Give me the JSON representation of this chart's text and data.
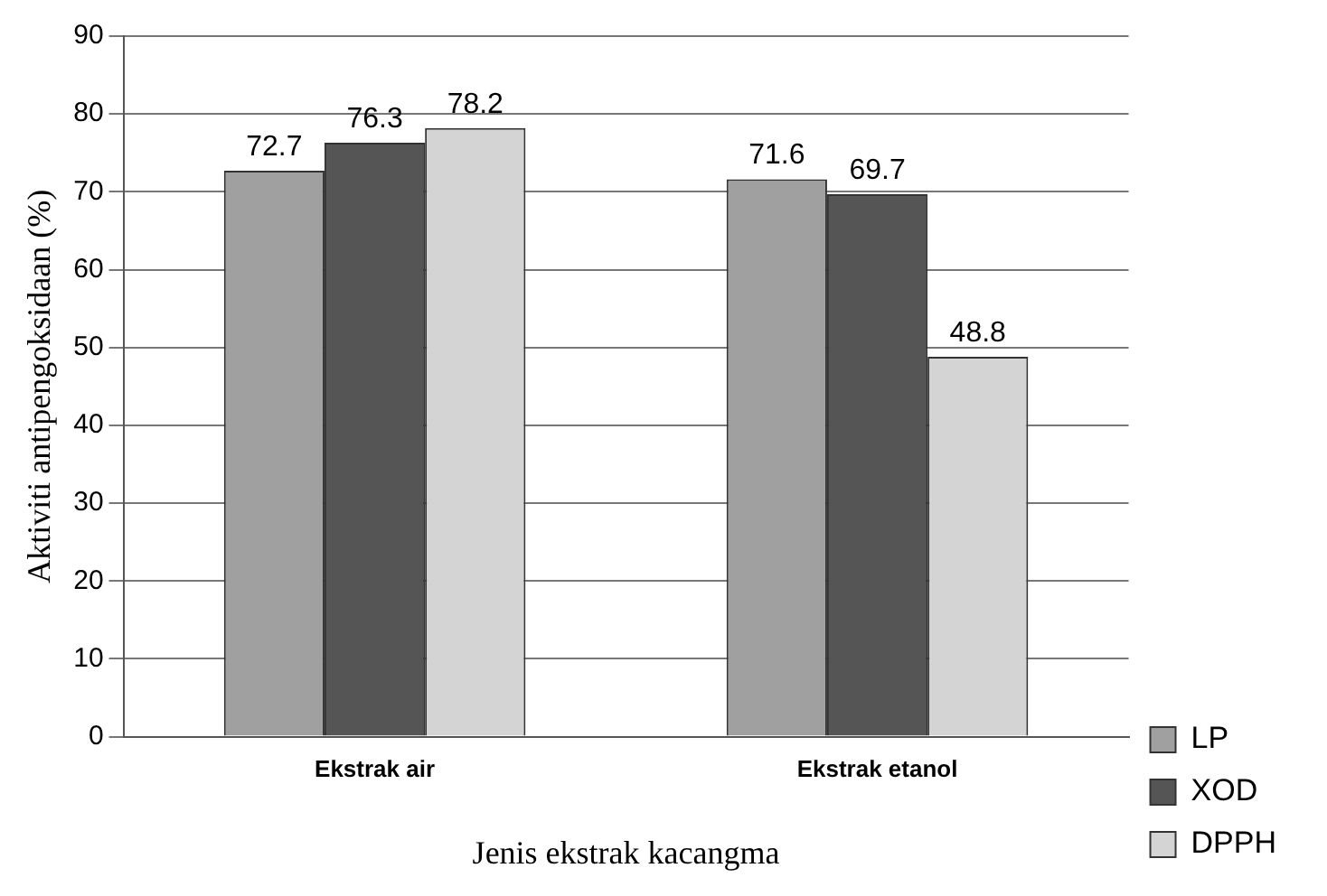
{
  "chart_data": {
    "type": "bar",
    "xlabel": "Jenis ekstrak kacangma",
    "ylabel": "Aktiviti antipengoksidaan (%)",
    "categories": [
      "Ekstrak air",
      "Ekstrak etanol"
    ],
    "series": [
      {
        "name": "LP",
        "color": "#a0a0a0",
        "values": [
          72.7,
          71.6
        ]
      },
      {
        "name": "XOD",
        "color": "#555555",
        "values": [
          76.3,
          69.7
        ]
      },
      {
        "name": "DPPH",
        "color": "#d4d4d4",
        "values": [
          78.2,
          48.8
        ]
      }
    ],
    "ylim": [
      0,
      90
    ],
    "yticks": [
      0,
      10,
      20,
      30,
      40,
      50,
      60,
      70,
      80,
      90
    ],
    "grid": "y",
    "legend": "bottom right",
    "data_labels": true
  }
}
